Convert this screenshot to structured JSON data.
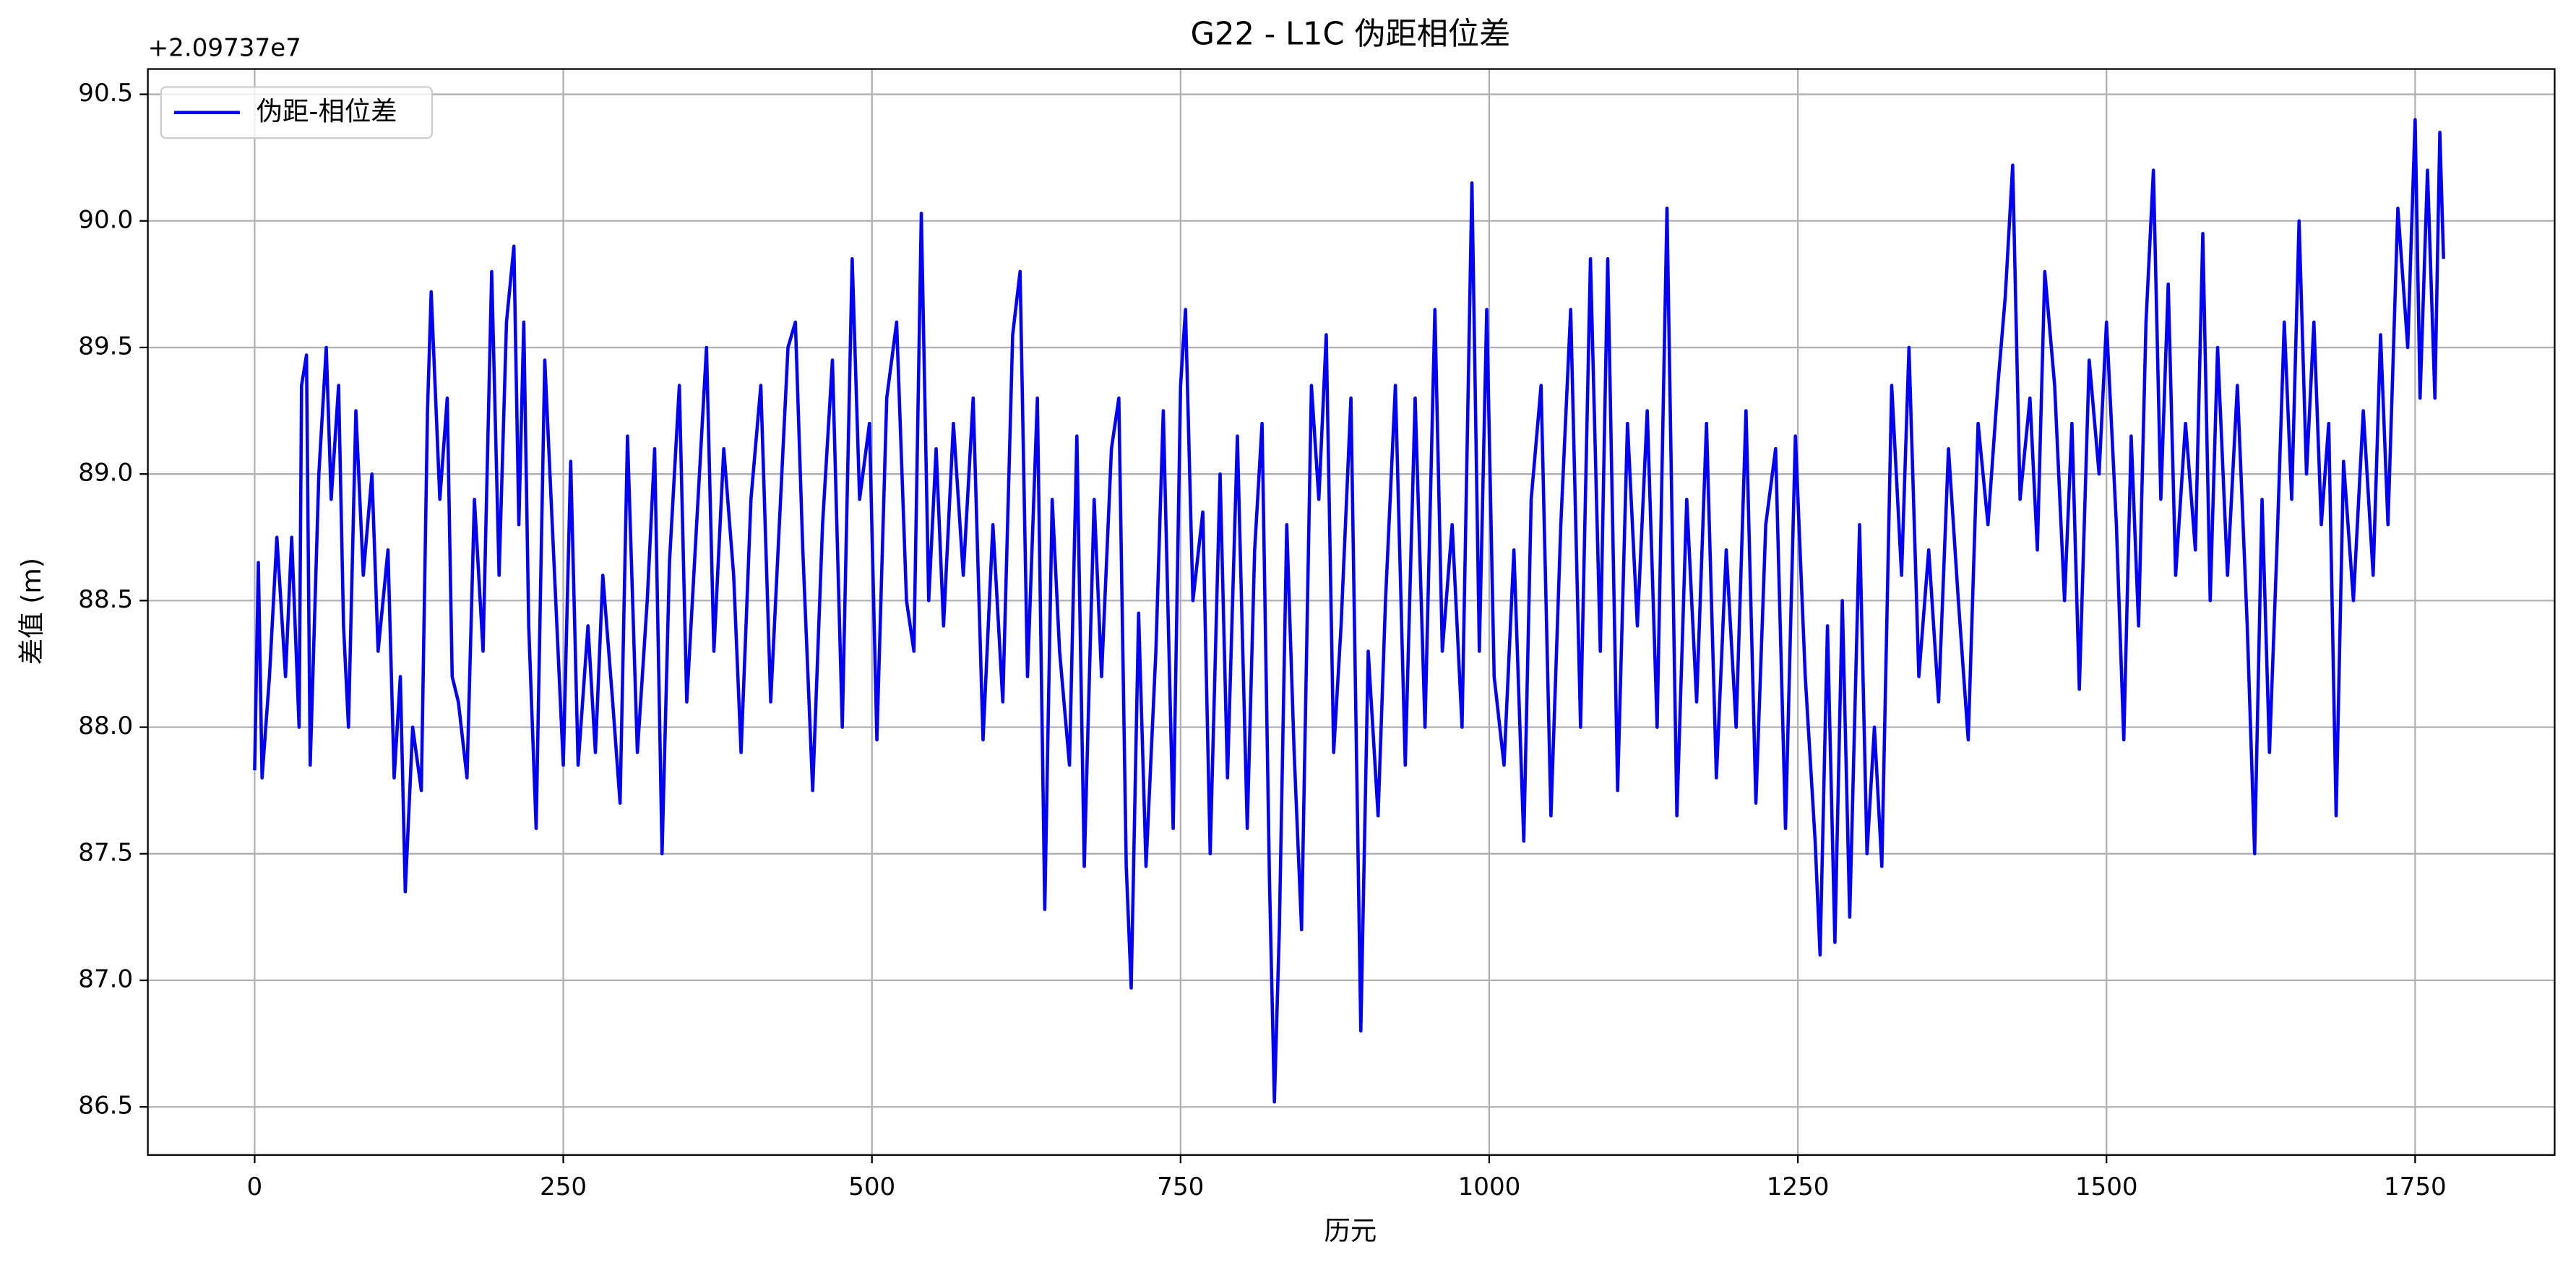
{
  "chart_data": {
    "type": "line",
    "title": "G22 - L1C 伪距相位差",
    "xlabel": "历元",
    "ylabel": "差值 (m)",
    "offset_text": "+2.09737e7",
    "x": [
      0,
      3,
      6,
      12,
      18,
      25,
      30,
      36,
      38,
      42,
      45,
      52,
      58,
      62,
      68,
      72,
      76,
      82,
      88,
      95,
      100,
      108,
      113,
      118,
      122,
      128,
      135,
      140,
      143,
      150,
      156,
      160,
      165,
      172,
      178,
      185,
      192,
      198,
      204,
      210,
      214,
      218,
      222,
      228,
      235,
      242,
      250,
      256,
      262,
      270,
      276,
      282,
      290,
      296,
      302,
      310,
      318,
      324,
      330,
      336,
      344,
      350,
      358,
      366,
      372,
      380,
      388,
      394,
      402,
      410,
      418,
      426,
      432,
      438,
      444,
      452,
      460,
      468,
      476,
      484,
      490,
      498,
      504,
      512,
      520,
      528,
      534,
      540,
      546,
      552,
      558,
      566,
      574,
      582,
      590,
      598,
      606,
      614,
      620,
      626,
      634,
      640,
      646,
      652,
      660,
      666,
      672,
      680,
      686,
      694,
      700,
      706,
      710,
      716,
      722,
      730,
      736,
      744,
      750,
      754,
      760,
      768,
      774,
      782,
      788,
      796,
      804,
      810,
      816,
      822,
      826,
      830,
      836,
      842,
      848,
      856,
      862,
      868,
      874,
      880,
      888,
      896,
      902,
      910,
      916,
      924,
      932,
      940,
      948,
      956,
      962,
      970,
      978,
      986,
      992,
      998,
      1004,
      1012,
      1020,
      1028,
      1034,
      1042,
      1050,
      1058,
      1066,
      1074,
      1082,
      1090,
      1096,
      1104,
      1112,
      1120,
      1128,
      1136,
      1144,
      1152,
      1160,
      1168,
      1176,
      1184,
      1192,
      1200,
      1208,
      1216,
      1224,
      1232,
      1240,
      1248,
      1256,
      1264,
      1268,
      1274,
      1280,
      1286,
      1292,
      1300,
      1306,
      1312,
      1318,
      1326,
      1334,
      1340,
      1348,
      1356,
      1364,
      1372,
      1380,
      1388,
      1396,
      1404,
      1412,
      1418,
      1424,
      1430,
      1438,
      1444,
      1450,
      1458,
      1466,
      1472,
      1478,
      1486,
      1494,
      1500,
      1508,
      1514,
      1520,
      1526,
      1532,
      1538,
      1544,
      1550,
      1556,
      1564,
      1572,
      1578,
      1584,
      1590,
      1598,
      1606,
      1614,
      1620,
      1626,
      1632,
      1638,
      1644,
      1650,
      1656,
      1662,
      1668,
      1674,
      1680,
      1686,
      1692,
      1700,
      1708,
      1716,
      1722,
      1728,
      1736,
      1744,
      1750,
      1754,
      1760,
      1766,
      1770,
      1773
    ],
    "series": [
      {
        "name": "伪距-相位差",
        "color": "#0000ff",
        "values": [
          87.83,
          88.65,
          87.8,
          88.2,
          88.75,
          88.2,
          88.75,
          88.0,
          89.35,
          89.47,
          87.85,
          89.0,
          89.5,
          88.9,
          89.35,
          88.4,
          88.0,
          89.25,
          88.6,
          89.0,
          88.3,
          88.7,
          87.8,
          88.2,
          87.35,
          88.0,
          87.75,
          89.25,
          89.72,
          88.9,
          89.3,
          88.2,
          88.1,
          87.8,
          88.9,
          88.3,
          89.8,
          88.6,
          89.6,
          89.9,
          88.8,
          89.6,
          88.4,
          87.6,
          89.45,
          88.7,
          87.85,
          89.05,
          87.85,
          88.4,
          87.9,
          88.6,
          88.1,
          87.7,
          89.15,
          87.9,
          88.5,
          89.1,
          87.5,
          88.65,
          89.35,
          88.1,
          88.8,
          89.5,
          88.3,
          89.1,
          88.6,
          87.9,
          88.9,
          89.35,
          88.1,
          88.9,
          89.5,
          89.6,
          88.7,
          87.75,
          88.8,
          89.45,
          88.0,
          89.85,
          88.9,
          89.2,
          87.95,
          89.3,
          89.6,
          88.5,
          88.3,
          90.03,
          88.5,
          89.1,
          88.4,
          89.2,
          88.6,
          89.3,
          87.95,
          88.8,
          88.1,
          89.55,
          89.8,
          88.2,
          89.3,
          87.28,
          88.9,
          88.3,
          87.85,
          89.15,
          87.45,
          88.9,
          88.2,
          89.1,
          89.3,
          87.45,
          86.97,
          88.45,
          87.45,
          88.3,
          89.25,
          87.6,
          89.35,
          89.65,
          88.5,
          88.85,
          87.5,
          89.0,
          87.8,
          89.15,
          87.6,
          88.7,
          89.2,
          87.4,
          86.52,
          87.2,
          88.8,
          87.9,
          87.2,
          89.35,
          88.9,
          89.55,
          87.9,
          88.4,
          89.3,
          86.8,
          88.3,
          87.65,
          88.5,
          89.35,
          87.85,
          89.3,
          88.0,
          89.65,
          88.3,
          88.8,
          88.0,
          90.15,
          88.3,
          89.65,
          88.2,
          87.85,
          88.7,
          87.55,
          88.9,
          89.35,
          87.65,
          88.8,
          89.65,
          88.0,
          89.85,
          88.3,
          89.85,
          87.75,
          89.2,
          88.4,
          89.25,
          88.0,
          90.05,
          87.65,
          88.9,
          88.1,
          89.2,
          87.8,
          88.7,
          88.0,
          89.25,
          87.7,
          88.8,
          89.1,
          87.6,
          89.15,
          88.2,
          87.55,
          87.1,
          88.4,
          87.15,
          88.5,
          87.25,
          88.8,
          87.5,
          88.0,
          87.45,
          89.35,
          88.6,
          89.5,
          88.2,
          88.7,
          88.1,
          89.1,
          88.5,
          87.95,
          89.2,
          88.8,
          89.35,
          89.7,
          90.22,
          88.9,
          89.3,
          88.7,
          89.8,
          89.35,
          88.5,
          89.2,
          88.15,
          89.45,
          89.0,
          89.6,
          88.8,
          87.95,
          89.15,
          88.4,
          89.6,
          90.2,
          88.9,
          89.75,
          88.6,
          89.2,
          88.7,
          89.95,
          88.5,
          89.5,
          88.6,
          89.35,
          88.4,
          87.5,
          88.9,
          87.9,
          88.7,
          89.6,
          88.9,
          90.0,
          89.0,
          89.6,
          88.8,
          89.2,
          87.65,
          89.05,
          88.5,
          89.25,
          88.6,
          89.55,
          88.8,
          90.05,
          89.5,
          90.4,
          89.3,
          90.2,
          89.3,
          90.35,
          89.85
        ]
      }
    ],
    "xlim": [
      -86.5,
      1863
    ],
    "ylim": [
      86.31,
      90.6
    ],
    "xticks": [
      0,
      250,
      500,
      750,
      1000,
      1250,
      1500,
      1750
    ],
    "yticks": [
      86.5,
      {
        "value": 87,
        "label": "87.0"
      },
      87.5,
      {
        "value": 88,
        "label": "88.0"
      },
      88.5,
      {
        "value": 89,
        "label": "89.0"
      },
      89.5,
      {
        "value": 90,
        "label": "90.0"
      },
      90.5
    ],
    "grid": true,
    "legend": "upper left"
  }
}
